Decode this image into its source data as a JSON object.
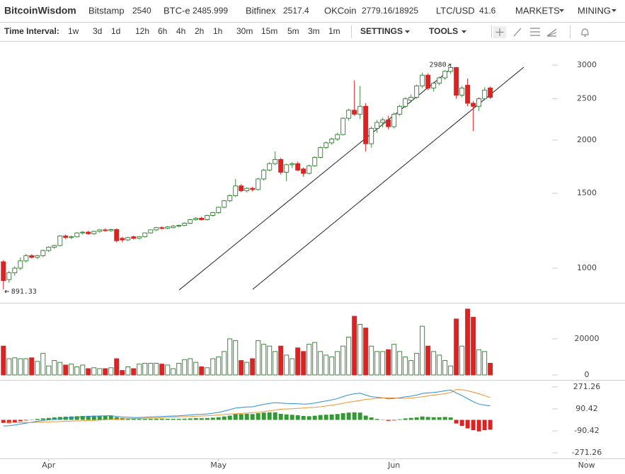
{
  "header": {
    "brand": "BitcoinWisdom",
    "brand_color": "#2a7ed3",
    "exchanges": [
      {
        "name": "Bitstamp",
        "price": "2540",
        "color": "#e8821e"
      },
      {
        "name": "BTC-e",
        "price": "2485.999",
        "color": "#2a7ed3"
      },
      {
        "name": "Bitfinex",
        "price": "2517.4",
        "color": "#2a7ed3"
      },
      {
        "name": "OKCoin",
        "price": "2779.16/18925",
        "color": "#2a7ed3"
      },
      {
        "name": "LTC/USD",
        "price": "41.6",
        "color": "#2a7ed3"
      }
    ],
    "menus": [
      "MARKETS",
      "MINING"
    ]
  },
  "toolbar": {
    "label": "Time Interval:",
    "intervals": [
      "1w",
      "3d",
      "1d",
      "12h",
      "6h",
      "4h",
      "2h",
      "1h",
      "30m",
      "15m",
      "5m",
      "3m",
      "1m"
    ],
    "active_index": 2,
    "link_color": "#2a7ed3",
    "active_color": "#e8821e",
    "menus": [
      "SETTINGS",
      "TOOLS"
    ]
  },
  "chart_data": [
    {
      "type": "candlestick",
      "log_scale": true,
      "up_color": "#3a8a3a",
      "down_color": "#dd2222",
      "ylim": [
        829,
        3365
      ],
      "yticks": [
        1000,
        1500,
        2000,
        2500,
        3000
      ],
      "xlim": [
        -0.6,
        109.8
      ],
      "xticks": [
        {
          "value": 8,
          "label": "Apr"
        },
        {
          "value": 38,
          "label": "May"
        },
        {
          "value": 69,
          "label": "Jun"
        },
        {
          "value": 103,
          "label": "Now"
        }
      ],
      "high_label": 2980,
      "low_label": 891.33,
      "candles": [
        [
          1035,
          1045,
          891.33,
          935
        ],
        [
          940,
          985,
          925,
          975
        ],
        [
          975,
          1010,
          960,
          1000
        ],
        [
          1000,
          1060,
          990,
          1040
        ],
        [
          1040,
          1080,
          1030,
          1070
        ],
        [
          1070,
          1078,
          1055,
          1060
        ],
        [
          1060,
          1075,
          1050,
          1070
        ],
        [
          1070,
          1105,
          1062,
          1100
        ],
        [
          1100,
          1125,
          1090,
          1120
        ],
        [
          1120,
          1135,
          1110,
          1130
        ],
        [
          1130,
          1195,
          1125,
          1190
        ],
        [
          1190,
          1200,
          1170,
          1180
        ],
        [
          1180,
          1192,
          1170,
          1185
        ],
        [
          1185,
          1215,
          1180,
          1210
        ],
        [
          1210,
          1222,
          1200,
          1215
        ],
        [
          1215,
          1225,
          1198,
          1205
        ],
        [
          1205,
          1225,
          1198,
          1220
        ],
        [
          1220,
          1235,
          1212,
          1230
        ],
        [
          1230,
          1240,
          1218,
          1225
        ],
        [
          1225,
          1238,
          1218,
          1232
        ],
        [
          1232,
          1240,
          1150,
          1160
        ],
        [
          1175,
          1185,
          1150,
          1165
        ],
        [
          1165,
          1185,
          1158,
          1180
        ],
        [
          1185,
          1192,
          1168,
          1175
        ],
        [
          1175,
          1190,
          1168,
          1185
        ],
        [
          1185,
          1212,
          1180,
          1210
        ],
        [
          1210,
          1232,
          1205,
          1230
        ],
        [
          1230,
          1250,
          1222,
          1245
        ],
        [
          1245,
          1255,
          1232,
          1240
        ],
        [
          1240,
          1256,
          1234,
          1250
        ],
        [
          1245,
          1262,
          1240,
          1255
        ],
        [
          1255,
          1266,
          1248,
          1260
        ],
        [
          1260,
          1282,
          1255,
          1275
        ],
        [
          1275,
          1305,
          1268,
          1300
        ],
        [
          1300,
          1318,
          1292,
          1310
        ],
        [
          1310,
          1320,
          1295,
          1300
        ],
        [
          1300,
          1335,
          1294,
          1330
        ],
        [
          1330,
          1356,
          1322,
          1350
        ],
        [
          1350,
          1395,
          1342,
          1390
        ],
        [
          1390,
          1445,
          1382,
          1440
        ],
        [
          1440,
          1490,
          1430,
          1480
        ],
        [
          1480,
          1620,
          1470,
          1560
        ],
        [
          1560,
          1575,
          1510,
          1520
        ],
        [
          1520,
          1550,
          1505,
          1540
        ],
        [
          1540,
          1555,
          1515,
          1530
        ],
        [
          1530,
          1630,
          1522,
          1620
        ],
        [
          1620,
          1710,
          1605,
          1700
        ],
        [
          1700,
          1775,
          1690,
          1760
        ],
        [
          1760,
          1880,
          1745,
          1800
        ],
        [
          1800,
          1815,
          1660,
          1680
        ],
        [
          1680,
          1760,
          1600,
          1750
        ],
        [
          1750,
          1775,
          1720,
          1760
        ],
        [
          1760,
          1780,
          1690,
          1700
        ],
        [
          1710,
          1725,
          1640,
          1670
        ],
        [
          1670,
          1750,
          1660,
          1740
        ],
        [
          1740,
          1830,
          1730,
          1820
        ],
        [
          1820,
          1930,
          1810,
          1920
        ],
        [
          1920,
          1985,
          1905,
          1970
        ],
        [
          1970,
          2025,
          1950,
          2010
        ],
        [
          2010,
          2080,
          1990,
          2060
        ],
        [
          2060,
          2260,
          2050,
          2250
        ],
        [
          2250,
          2370,
          2220,
          2350
        ],
        [
          2350,
          2760,
          2280,
          2300
        ],
        [
          2300,
          2680,
          2240,
          2400
        ],
        [
          2400,
          2440,
          1880,
          1960
        ],
        [
          1960,
          2150,
          1920,
          2130
        ],
        [
          2130,
          2230,
          2080,
          2200
        ],
        [
          2200,
          2260,
          2140,
          2230
        ],
        [
          2230,
          2280,
          2120,
          2150
        ],
        [
          2150,
          2320,
          2130,
          2300
        ],
        [
          2300,
          2420,
          2280,
          2400
        ],
        [
          2400,
          2520,
          2380,
          2500
        ],
        [
          2480,
          2560,
          2450,
          2520
        ],
        [
          2520,
          2700,
          2500,
          2680
        ],
        [
          2680,
          2880,
          2650,
          2840
        ],
        [
          2840,
          2870,
          2620,
          2650
        ],
        [
          2650,
          2740,
          2600,
          2720
        ],
        [
          2720,
          2820,
          2690,
          2800
        ],
        [
          2800,
          2920,
          2770,
          2900
        ],
        [
          2900,
          2980,
          2860,
          2960
        ],
        [
          2960,
          2970,
          2500,
          2550
        ],
        [
          2550,
          2680,
          2520,
          2650
        ],
        [
          2690,
          2790,
          2400,
          2440
        ],
        [
          2440,
          2470,
          2100,
          2400
        ],
        [
          2400,
          2520,
          2340,
          2500
        ],
        [
          2500,
          2660,
          2480,
          2620
        ],
        [
          2650,
          2670,
          2500,
          2520
        ]
      ]
    },
    {
      "type": "bar",
      "ylim": [
        0,
        39200
      ],
      "yticks": [
        0,
        20000
      ],
      "values": [
        16000,
        9000,
        9500,
        9000,
        9000,
        9500,
        7500,
        12000,
        5000,
        8000,
        7000,
        5500,
        6000,
        4500,
        5500,
        3500,
        4000,
        3500,
        3500,
        4000,
        9000,
        2500,
        4500,
        3500,
        6000,
        6500,
        6500,
        6500,
        6000,
        5500,
        3500,
        6500,
        8500,
        9000,
        7000,
        4500,
        4000,
        9000,
        10000,
        13000,
        20000,
        19000,
        8000,
        7000,
        9000,
        19000,
        17000,
        16000,
        13000,
        16000,
        11000,
        9000,
        15000,
        13000,
        17000,
        18000,
        13000,
        11000,
        10000,
        13000,
        16000,
        21000,
        32500,
        28000,
        26000,
        16000,
        13000,
        13000,
        14000,
        17000,
        13000,
        10000,
        8000,
        12000,
        27000,
        16000,
        13000,
        11000,
        8000,
        5000,
        31000,
        16000,
        36500,
        32000,
        14000,
        13000,
        6500
      ]
    },
    {
      "type": "macd",
      "ylim": [
        -318,
        312
      ],
      "yticks": [
        271.26,
        90.42,
        -90.42,
        -271.26
      ],
      "positive_color": "#339933",
      "negative_color": "#dd2222",
      "histogram": [
        -25,
        -28,
        -20,
        -12,
        -5,
        2,
        8,
        12,
        16,
        20,
        24,
        26,
        28,
        30,
        32,
        33,
        34,
        34,
        33,
        32,
        22,
        16,
        12,
        9,
        8,
        8,
        9,
        10,
        10,
        9,
        9,
        9,
        10,
        12,
        14,
        14,
        15,
        18,
        22,
        28,
        35,
        48,
        48,
        50,
        48,
        55,
        60,
        62,
        62,
        50,
        45,
        42,
        38,
        32,
        30,
        34,
        40,
        42,
        44,
        48,
        55,
        60,
        62,
        60,
        35,
        20,
        8,
        2,
        -8,
        -5,
        5,
        12,
        16,
        20,
        28,
        24,
        22,
        22,
        24,
        20,
        -30,
        -50,
        -70,
        -85,
        -95,
        -85,
        -80
      ],
      "series": [
        {
          "color": "#2a8fd6",
          "values": [
            -50,
            -48,
            -42,
            -35,
            -27,
            -20,
            -12,
            -5,
            0,
            5,
            10,
            14,
            18,
            22,
            25,
            28,
            30,
            32,
            34,
            35,
            28,
            24,
            22,
            20,
            20,
            22,
            24,
            26,
            28,
            30,
            32,
            34,
            37,
            40,
            44,
            46,
            49,
            55,
            62,
            72,
            84,
            98,
            102,
            106,
            108,
            118,
            128,
            136,
            142,
            138,
            135,
            134,
            133,
            130,
            132,
            138,
            148,
            156,
            165,
            176,
            192,
            206,
            215,
            220,
            204,
            192,
            186,
            182,
            174,
            176,
            182,
            190,
            196,
            204,
            218,
            222,
            226,
            232,
            240,
            246,
            222,
            200,
            175,
            150,
            130,
            122,
            115
          ]
        },
        {
          "color": "#f0922e",
          "values": [
            -25,
            -20,
            -22,
            -23,
            -22,
            -22,
            -20,
            -17,
            -16,
            -15,
            -14,
            -12,
            -10,
            -8,
            -7,
            -5,
            -4,
            -2,
            1,
            3,
            6,
            8,
            10,
            11,
            12,
            14,
            15,
            16,
            18,
            21,
            23,
            25,
            27,
            28,
            30,
            32,
            34,
            37,
            40,
            44,
            49,
            50,
            54,
            56,
            60,
            63,
            68,
            74,
            80,
            88,
            90,
            92,
            95,
            98,
            102,
            104,
            108,
            114,
            121,
            128,
            137,
            146,
            153,
            160,
            169,
            172,
            178,
            180,
            182,
            181,
            177,
            178,
            180,
            184,
            190,
            198,
            204,
            210,
            216,
            226,
            250,
            248,
            240,
            228,
            215,
            200,
            185
          ]
        }
      ]
    }
  ]
}
